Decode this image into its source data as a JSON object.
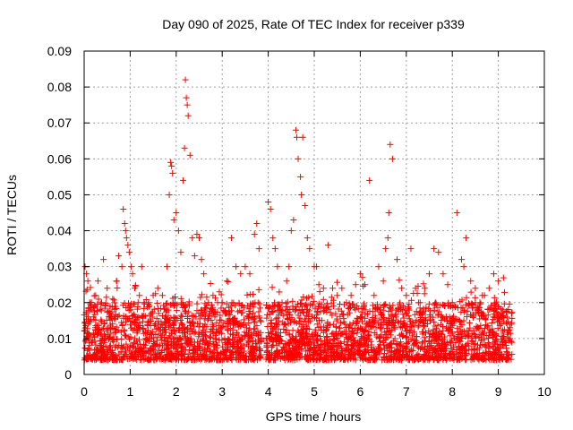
{
  "chart_data": {
    "type": "scatter",
    "title": "Day 090 of 2025, Rate Of TEC Index for receiver p339",
    "xlabel": "GPS time / hours",
    "ylabel": "ROTI / TECUs",
    "xlim": [
      0,
      10
    ],
    "ylim": [
      0,
      0.09
    ],
    "xticks": [
      "0",
      "1",
      "2",
      "3",
      "4",
      "5",
      "6",
      "7",
      "8",
      "9",
      "10"
    ],
    "yticks": [
      "0",
      "0.01",
      "0.02",
      "0.03",
      "0.04",
      "0.05",
      "0.06",
      "0.07",
      "0.08",
      "0.09"
    ],
    "grid": true,
    "marker": "plus",
    "color": "#ff0000",
    "data_extent_hours": [
      0,
      9.3
    ],
    "baseline_band": {
      "low": 0.004,
      "high": 0.02
    },
    "segments": [
      {
        "start": 0.0,
        "end": 3.85
      },
      {
        "start": 3.95,
        "end": 9.3
      }
    ],
    "series": [
      {
        "name": "ROTI",
        "x": [
          0.02,
          0.05,
          0.08,
          0.12,
          0.15,
          0.2,
          0.25,
          0.3,
          0.38,
          0.42,
          0.5,
          0.55,
          0.62,
          0.7,
          0.75,
          0.82,
          0.85,
          0.88,
          0.9,
          0.92,
          0.95,
          0.98,
          1.02,
          1.05,
          1.1,
          1.2,
          1.25,
          1.3,
          1.4,
          1.5,
          1.6,
          1.7,
          1.8,
          1.85,
          1.88,
          1.9,
          1.92,
          1.95,
          2.0,
          2.05,
          2.1,
          2.15,
          2.18,
          2.2,
          2.22,
          2.24,
          2.26,
          2.3,
          2.35,
          2.4,
          2.45,
          2.5,
          2.55,
          2.6,
          2.7,
          2.8,
          2.9,
          3.0,
          3.1,
          3.2,
          3.3,
          3.4,
          3.5,
          3.6,
          3.7,
          3.75,
          3.8,
          4.0,
          4.05,
          4.1,
          4.15,
          4.2,
          4.3,
          4.4,
          4.45,
          4.5,
          4.55,
          4.6,
          4.62,
          4.65,
          4.7,
          4.72,
          4.75,
          4.8,
          4.85,
          4.9,
          5.0,
          5.05,
          5.1,
          5.2,
          5.3,
          5.4,
          5.5,
          5.6,
          5.7,
          5.8,
          5.9,
          6.0,
          6.05,
          6.1,
          6.2,
          6.3,
          6.4,
          6.5,
          6.55,
          6.6,
          6.62,
          6.65,
          6.7,
          6.8,
          6.9,
          7.0,
          7.1,
          7.2,
          7.3,
          7.4,
          7.5,
          7.6,
          7.7,
          7.8,
          7.9,
          8.0,
          8.1,
          8.2,
          8.25,
          8.3,
          8.4,
          8.5,
          8.6,
          8.7,
          8.8,
          8.9,
          9.0,
          9.1,
          9.2,
          9.28
        ],
        "y": [
          0.03,
          0.028,
          0.026,
          0.02,
          0.018,
          0.016,
          0.022,
          0.026,
          0.02,
          0.032,
          0.024,
          0.016,
          0.021,
          0.026,
          0.033,
          0.03,
          0.046,
          0.042,
          0.04,
          0.038,
          0.036,
          0.034,
          0.03,
          0.028,
          0.024,
          0.022,
          0.03,
          0.02,
          0.02,
          0.022,
          0.024,
          0.022,
          0.03,
          0.05,
          0.059,
          0.058,
          0.056,
          0.043,
          0.045,
          0.04,
          0.034,
          0.054,
          0.063,
          0.082,
          0.077,
          0.075,
          0.072,
          0.061,
          0.038,
          0.033,
          0.039,
          0.038,
          0.032,
          0.028,
          0.02,
          0.022,
          0.02,
          0.02,
          0.026,
          0.038,
          0.03,
          0.028,
          0.03,
          0.028,
          0.039,
          0.042,
          0.035,
          0.048,
          0.046,
          0.038,
          0.035,
          0.03,
          0.02,
          0.026,
          0.03,
          0.04,
          0.043,
          0.068,
          0.066,
          0.06,
          0.055,
          0.05,
          0.066,
          0.047,
          0.038,
          0.035,
          0.03,
          0.03,
          0.025,
          0.024,
          0.036,
          0.024,
          0.022,
          0.024,
          0.02,
          0.022,
          0.025,
          0.028,
          0.027,
          0.025,
          0.054,
          0.022,
          0.03,
          0.026,
          0.035,
          0.038,
          0.045,
          0.064,
          0.06,
          0.032,
          0.024,
          0.022,
          0.035,
          0.024,
          0.02,
          0.024,
          0.028,
          0.035,
          0.034,
          0.028,
          0.025,
          0.02,
          0.045,
          0.032,
          0.03,
          0.038,
          0.026,
          0.024,
          0.02,
          0.022,
          0.024,
          0.028,
          0.026,
          0.018,
          0.014,
          0.014
        ]
      }
    ]
  }
}
